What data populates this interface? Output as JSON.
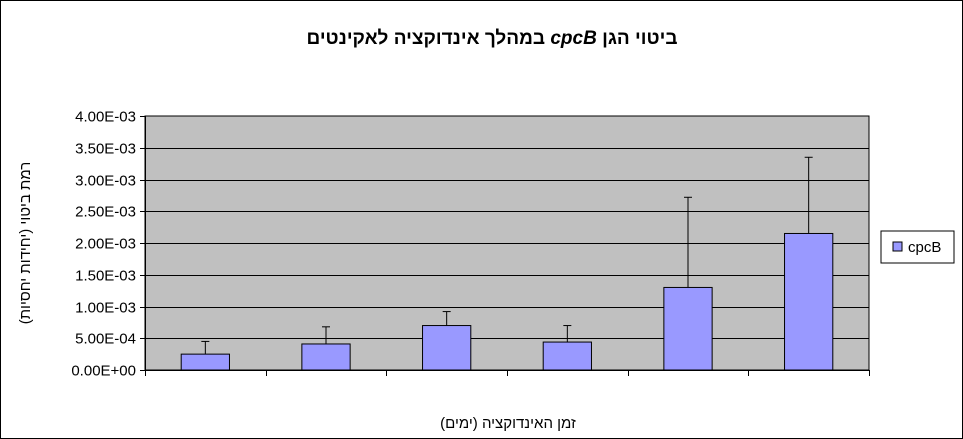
{
  "chart_data": {
    "type": "bar",
    "title": "ביטוי הגן cpcB במהלך אינדוקציה לאקינטים",
    "title_parts": {
      "prefix": "ביטוי הגן ",
      "gene": "cpcB",
      "suffix": " במהלך אינדוקציה לאקינטים"
    },
    "xlabel": "זמן האינדוקציה (ימים)",
    "ylabel": "רמת ביטוי (יחידות יחסיות)",
    "categories": [
      "",
      "",
      "",
      "",
      "",
      ""
    ],
    "series": [
      {
        "name": "cpcB",
        "values": [
          0.00025,
          0.00041,
          0.0007,
          0.00044,
          0.0013,
          0.00215
        ],
        "error_plus": [
          0.0002,
          0.00027,
          0.00022,
          0.00026,
          0.00142,
          0.0012
        ]
      }
    ],
    "ylim": [
      0,
      0.004
    ],
    "yticks": [
      0,
      0.0005,
      0.001,
      0.0015,
      0.002,
      0.0025,
      0.003,
      0.0035,
      0.004
    ],
    "ytick_labels": [
      "0.00E+00",
      "5.00E-04",
      "1.00E-03",
      "1.50E-03",
      "2.00E-03",
      "2.50E-03",
      "3.00E-03",
      "3.50E-03",
      "4.00E-03"
    ],
    "grid": true,
    "legend": "right",
    "colors": {
      "bar": "#9999ff",
      "plot_bg": "#c0c0c0",
      "border": "#000000",
      "page_bg": "#ffffff"
    }
  }
}
